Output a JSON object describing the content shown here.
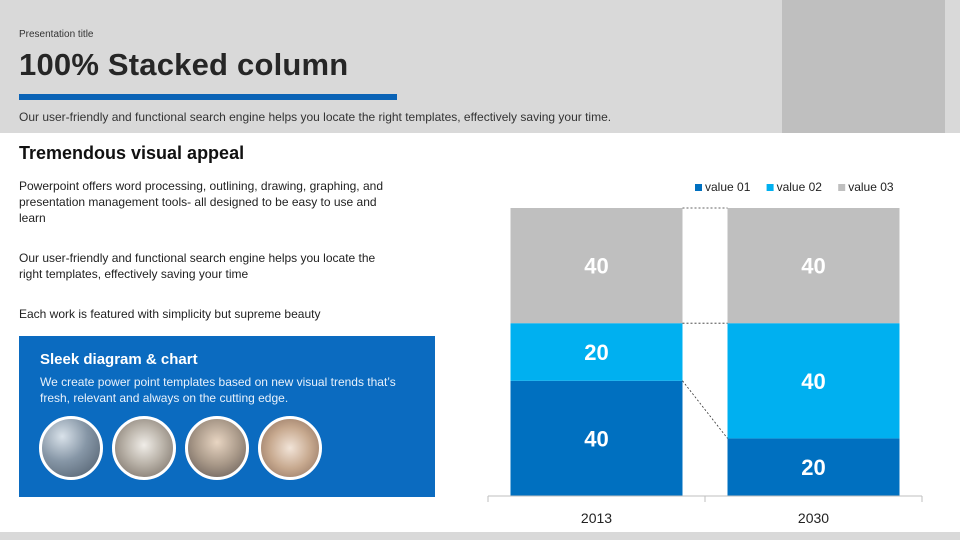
{
  "header": {
    "presentation_title": "Presentation title",
    "title": "100% Stacked column",
    "subtitle": "Our user-friendly  and functional  search engine  helps  you locate  the right templates,  effectively   saving  your time."
  },
  "left": {
    "heading": "Tremendous visual appeal",
    "paragraphs": [
      "Powerpoint  offers  word processing,  outlining, drawing,  graphing, and  presentation  management  tools- all designed  to be easy to use and learn",
      "Our user-friendly  and functional  search engine  helps you locate the right templates,  effectively  saving  your time",
      "Each work  is featured  with simplicity but supreme  beauty"
    ]
  },
  "box": {
    "title": "Sleek diagram & chart",
    "text": "We create power point templates based on new visual trends that’s fresh,  relevant  and always on the cutting edge."
  },
  "colors": {
    "accent": "#0a63b6",
    "value01": "#0070c0",
    "value02": "#00b0f0",
    "value03": "#bfbfbf"
  },
  "chart_data": {
    "type": "bar",
    "stacking": "percent",
    "categories": [
      "2013",
      "2030"
    ],
    "series": [
      {
        "name": "value 01",
        "values": [
          40,
          20
        ],
        "color": "#0070c0"
      },
      {
        "name": "value 02",
        "values": [
          20,
          40
        ],
        "color": "#00b0f0"
      },
      {
        "name": "value 03",
        "values": [
          40,
          40
        ],
        "color": "#bfbfbf"
      }
    ],
    "data_labels": true,
    "legend_position": "top-right",
    "series_lines": true
  }
}
